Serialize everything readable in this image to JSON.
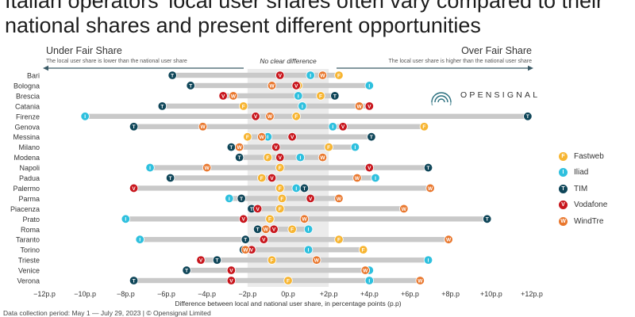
{
  "title": "Italian operators' local user shares often vary compared to their national shares and present different opportunities",
  "brand": "OPENSIGNAL",
  "footnote": "Data collection period: May 1 — July 29, 2023 | © Opensignal Limited",
  "colors": {
    "Fastweb": "#f7b531",
    "Iliad": "#2ec0de",
    "TIM": "#0f4659",
    "Vodafone": "#c8161d",
    "WindTre": "#e9772d",
    "bar": "#c9c9c9",
    "band": "#ebebeb",
    "axis_arrow": "#3a5a66"
  },
  "chart_data": {
    "type": "dot",
    "xlabel": "Difference between local and national user share, in percentage points (p.p)",
    "xlim": [
      -12,
      12
    ],
    "xticks": [
      {
        "value": -12,
        "label": "−12p.p"
      },
      {
        "value": -10,
        "label": "−10p.p"
      },
      {
        "value": -8,
        "label": "−8p.p"
      },
      {
        "value": -6,
        "label": "−6p.p"
      },
      {
        "value": -4,
        "label": "−4p.p"
      },
      {
        "value": -2,
        "label": "−2p.p"
      },
      {
        "value": 0,
        "label": "0p.p"
      },
      {
        "value": 2,
        "label": "+2p.p"
      },
      {
        "value": 4,
        "label": "+4p.p"
      },
      {
        "value": 6,
        "label": "+6p.p"
      },
      {
        "value": 8,
        "label": "+8p.p"
      },
      {
        "value": 10,
        "label": "+10p.p"
      },
      {
        "value": 12,
        "label": "+12p.p"
      }
    ],
    "band": [
      -2,
      2
    ],
    "annotations": {
      "left_title": "Under Fair Share",
      "left_sub": "The local user share is lower than the national user share",
      "center": "No clear difference",
      "right_title": "Over Fair Share",
      "right_sub": "The local user share is higher than the national user share"
    },
    "series_order": [
      "Fastweb",
      "Iliad",
      "TIM",
      "Vodafone",
      "WindTre"
    ],
    "categories": [
      "Bari",
      "Bologna",
      "Brescia",
      "Catania",
      "Firenze",
      "Genova",
      "Messina",
      "Milano",
      "Modena",
      "Napoli",
      "Padua",
      "Palermo",
      "Parma",
      "Piacenza",
      "Prato",
      "Roma",
      "Taranto",
      "Torino",
      "Trieste",
      "Venice",
      "Verona"
    ],
    "series": [
      {
        "name": "Fastweb",
        "values": [
          2.5,
          0.5,
          1.6,
          -2.2,
          0.4,
          6.7,
          -2.0,
          2.0,
          -1.0,
          -0.4,
          -1.3,
          -0.4,
          -0.3,
          -0.4,
          -0.9,
          0.2,
          2.5,
          3.7,
          -0.8,
          -2.8,
          0.0
        ]
      },
      {
        "name": "Iliad",
        "values": [
          1.1,
          4.0,
          0.5,
          0.7,
          -10.0,
          2.2,
          -1.0,
          3.3,
          0.6,
          -6.8,
          4.3,
          0.4,
          -2.9,
          -1.6,
          -8.0,
          1.0,
          -7.3,
          1.0,
          6.9,
          4.0,
          4.0
        ]
      },
      {
        "name": "TIM",
        "values": [
          -5.7,
          -4.8,
          2.3,
          -6.2,
          11.8,
          -7.6,
          4.1,
          -2.8,
          -2.4,
          6.9,
          -5.8,
          0.8,
          -2.3,
          -1.8,
          9.8,
          -1.5,
          -2.1,
          -2.2,
          -3.5,
          -5.0,
          -7.6
        ]
      },
      {
        "name": "Vodafone",
        "values": [
          -0.4,
          0.4,
          -3.2,
          4.0,
          -1.6,
          2.7,
          0.2,
          -0.6,
          -0.4,
          4.0,
          -0.8,
          -7.6,
          1.1,
          -1.5,
          -2.2,
          -0.7,
          -1.2,
          -1.8,
          -4.3,
          -2.8,
          -2.8
        ]
      },
      {
        "name": "WindTre",
        "values": [
          1.7,
          -0.8,
          -2.7,
          3.5,
          -0.9,
          -4.2,
          -1.3,
          -2.4,
          1.7,
          -4.0,
          3.4,
          7.0,
          2.5,
          5.7,
          0.8,
          -1.1,
          7.9,
          -2.1,
          1.4,
          3.8,
          6.5
        ]
      }
    ],
    "legend": "right"
  }
}
